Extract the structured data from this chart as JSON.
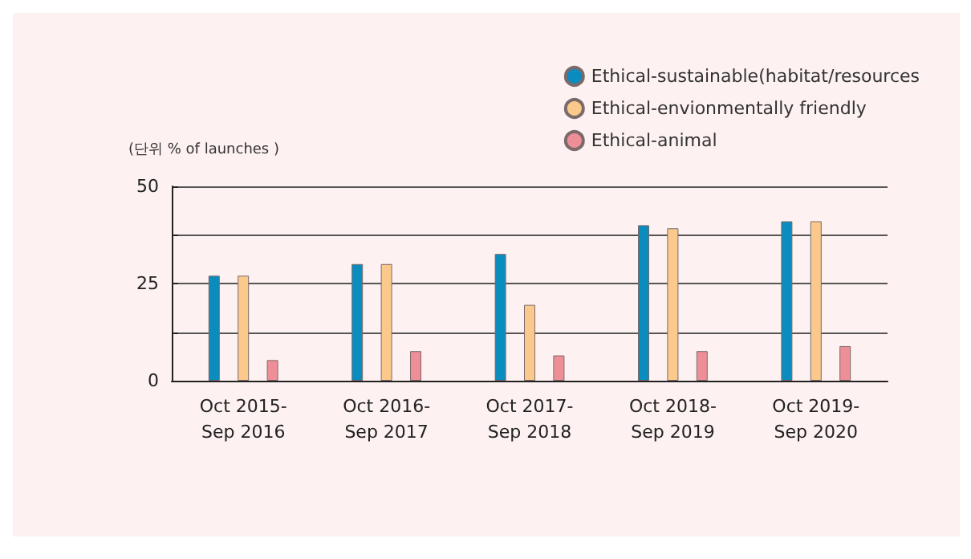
{
  "chart_data": {
    "type": "bar",
    "ylabel": "(단위 % of launches )",
    "categories": [
      "Oct 2015-\nSep 2016",
      "Oct 2016-\nSep 2017",
      "Oct 2017-\nSep 2018",
      "Oct 2018-\nSep 2019",
      "Oct 2019-\nSep 2020"
    ],
    "series": [
      {
        "name": "Ethical-sustainable(habitat/resources",
        "color": "#0a8cbf",
        "values": [
          27,
          30,
          32.6,
          40,
          41
        ]
      },
      {
        "name": "Ethical-envionmentally friendly",
        "color": "#fcc98c",
        "values": [
          27,
          30,
          19.5,
          39.2,
          41
        ]
      },
      {
        "name": "Ethical-animal",
        "color": "#ee8f98",
        "values": [
          5.3,
          7.6,
          6.5,
          7.6,
          8.9
        ]
      }
    ],
    "ylim": [
      0,
      50
    ],
    "yticks": [
      0,
      {
        "value": 12.5,
        "label": null
      },
      25,
      {
        "value": 37.5,
        "label": null
      },
      50
    ],
    "grid": "y",
    "legend": "top right"
  }
}
